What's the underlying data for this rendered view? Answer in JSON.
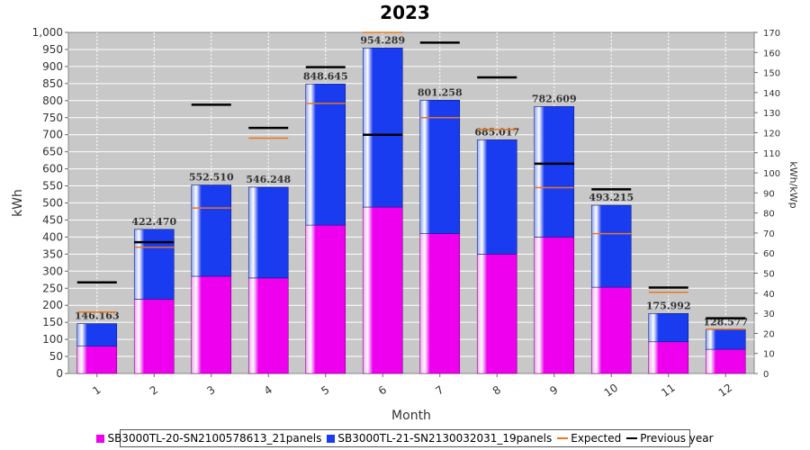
{
  "chart_data": {
    "type": "bar",
    "title": "2023",
    "xlabel": "Month",
    "ylabel": "kWh",
    "y2label": "kWh/kWp",
    "ylim": [
      0,
      1000
    ],
    "y2lim": [
      0,
      170
    ],
    "yticks": [
      0,
      50,
      100,
      150,
      200,
      250,
      300,
      350,
      400,
      450,
      500,
      550,
      600,
      650,
      700,
      750,
      800,
      850,
      900,
      950,
      1000
    ],
    "ytick_labels": [
      "0",
      "50",
      "100",
      "150",
      "200",
      "250",
      "300",
      "350",
      "400",
      "450",
      "500",
      "550",
      "600",
      "650",
      "700",
      "750",
      "800",
      "850",
      "900",
      "950",
      "1,000"
    ],
    "y2ticks": [
      0,
      10,
      20,
      30,
      40,
      50,
      60,
      70,
      80,
      90,
      100,
      110,
      120,
      130,
      140,
      150,
      160,
      170
    ],
    "categories": [
      "1",
      "2",
      "3",
      "4",
      "5",
      "6",
      "7",
      "8",
      "9",
      "10",
      "11",
      "12"
    ],
    "stacked": true,
    "series": [
      {
        "name": "SB3000TL-20-SN2100578613_21panels",
        "color": "#ee00ee",
        "values": [
          80,
          218,
          285,
          280,
          435,
          488,
          410,
          350,
          400,
          253,
          93,
          71
        ]
      },
      {
        "name": "SB3000TL-21-SN2130032031_19panels",
        "color": "#1a3cf0",
        "values": [
          66.163,
          204.47,
          267.51,
          266.248,
          413.645,
          466.289,
          391.258,
          335.017,
          382.609,
          240.215,
          82.992,
          57.577
        ]
      }
    ],
    "totals": [
      "146.163",
      "422.470",
      "552.510",
      "546.248",
      "848.645",
      "954.289",
      "801.258",
      "685.017",
      "782.609",
      "493.215",
      "175.992",
      "128.577"
    ],
    "expected": {
      "name": "Expected",
      "color": "#e8781e",
      "values": [
        180,
        370,
        485,
        690,
        792,
        1000,
        750,
        715,
        545,
        410,
        238,
        130
      ]
    },
    "previous_year": {
      "name": "Previous year",
      "color": "#000000",
      "values": [
        267,
        385,
        788,
        720,
        898,
        700,
        970,
        868,
        615,
        540,
        252,
        162
      ]
    },
    "grid": true,
    "legend_position": "bottom"
  }
}
